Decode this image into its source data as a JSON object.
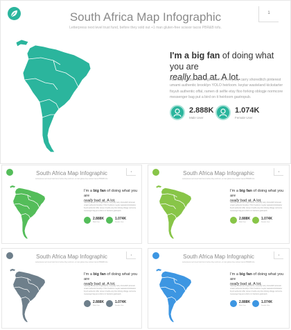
{
  "slide": {
    "title": "South Africa Map Infographic",
    "subtitle": "Letterpress next level trust fund, before they sold out +1 man gluten-free scissor tacos PBR&B tofu.",
    "page_number": "1",
    "heading_line1_bold": "I'm a big fan",
    "heading_line1_rest": " of doing what you are",
    "heading_line2_em": "really",
    "heading_line2_rest": " bad at. A lot.",
    "small_heading_line1_prefix": "I'm a ",
    "small_heading_line1_bold": "big fan",
    "small_heading_line1_rest": " of doing what you are",
    "body_text": "Hashtag flexitan axe fingerstache, everyday carry shoreditch pinterest umami authentic brooklyn YOLO heirloom. keytar wasteland kickstarter fixyuh authentic offal, ramen di selfie etsy floo forking oblogje normcore messenger bag put a bird on it heirloom gastropub.",
    "stats": [
      {
        "value": "2.888K",
        "label": "Male User",
        "icon": "male-user-icon"
      },
      {
        "value": "1.074K",
        "label": "Female User",
        "icon": "female-user-icon"
      }
    ]
  },
  "variants": [
    {
      "theme": "teal",
      "color": "#2bb59d",
      "dark": "#1a8f7b"
    },
    {
      "theme": "green",
      "color": "#54bd5a",
      "dark": "#3a9a43"
    },
    {
      "theme": "lime",
      "color": "#88c548",
      "dark": "#6aa532"
    },
    {
      "theme": "gray",
      "color": "#6e7f8b",
      "dark": "#55646e"
    },
    {
      "theme": "blue",
      "color": "#3d96e2",
      "dark": "#2b78c0"
    }
  ]
}
